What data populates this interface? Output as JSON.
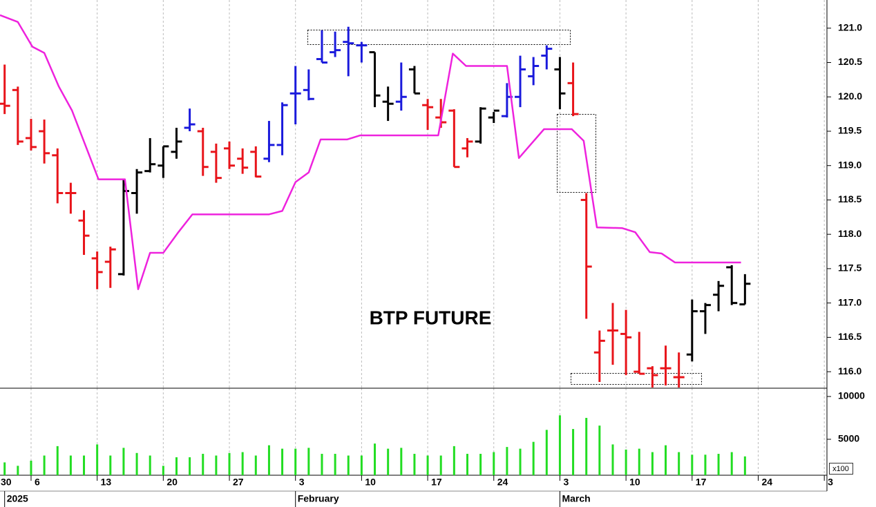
{
  "chart_data": [
    {
      "type": "ohlc",
      "title": "BTP FUTURE",
      "x": [
        -2,
        -1,
        0,
        1,
        2,
        3,
        4,
        5,
        6,
        7,
        8,
        9,
        10,
        11,
        12,
        13,
        14,
        15,
        16,
        17,
        18,
        19,
        20,
        21,
        22,
        23,
        24,
        25,
        26,
        27,
        28,
        29,
        30,
        31,
        32,
        33,
        34,
        35,
        36,
        37,
        38,
        39,
        40,
        41,
        42,
        43,
        44,
        45,
        46,
        47,
        48,
        49,
        50,
        51,
        52,
        53,
        54
      ],
      "open": [
        119.9,
        120.1,
        119.4,
        119.5,
        119.15,
        118.6,
        118.2,
        117.65,
        117.6,
        117.42,
        118.6,
        118.92,
        119.0,
        119.2,
        119.55,
        119.5,
        119.2,
        119.25,
        119.1,
        119.2,
        119.1,
        119.3,
        120.05,
        120.1,
        120.55,
        120.65,
        120.8,
        120.75,
        120.65,
        119.93,
        119.93,
        120.4,
        119.88,
        119.7,
        119.8,
        119.25,
        119.35,
        119.7,
        119.72,
        120.0,
        120.3,
        120.6,
        120.4,
        120.2,
        118.5,
        116.28,
        116.6,
        116.55,
        116.0,
        116.05,
        116.05,
        115.92,
        116.25,
        116.88,
        117.12,
        117.52,
        116.98
      ],
      "high": [
        120.47,
        120.15,
        119.68,
        119.67,
        119.25,
        118.75,
        118.35,
        117.75,
        117.82,
        118.8,
        118.95,
        119.4,
        119.28,
        119.55,
        119.83,
        119.55,
        119.32,
        119.35,
        119.25,
        119.28,
        119.65,
        119.92,
        120.45,
        120.4,
        120.97,
        120.95,
        121.02,
        120.8,
        120.65,
        120.15,
        120.5,
        120.45,
        119.97,
        119.97,
        119.82,
        119.4,
        119.85,
        119.78,
        120.2,
        120.6,
        120.58,
        120.75,
        120.58,
        120.5,
        118.6,
        116.6,
        117.0,
        116.9,
        116.58,
        116.08,
        116.38,
        116.28,
        117.05,
        117.0,
        117.32,
        117.55,
        117.42
      ],
      "low": [
        119.75,
        119.3,
        119.22,
        119.03,
        118.45,
        118.3,
        117.7,
        117.2,
        117.22,
        117.4,
        118.3,
        118.9,
        118.82,
        119.1,
        119.5,
        118.85,
        118.75,
        118.95,
        118.88,
        118.83,
        119.05,
        119.15,
        119.6,
        119.95,
        120.5,
        120.58,
        120.3,
        120.5,
        119.85,
        119.65,
        119.8,
        120.05,
        119.52,
        119.55,
        118.98,
        119.12,
        119.32,
        119.62,
        119.7,
        119.85,
        120.17,
        120.4,
        119.82,
        119.72,
        116.77,
        115.85,
        116.1,
        115.95,
        115.97,
        115.77,
        115.8,
        115.77,
        116.15,
        116.55,
        116.88,
        116.97,
        116.98
      ],
      "close": [
        119.87,
        119.35,
        119.27,
        119.18,
        118.6,
        118.6,
        117.98,
        117.45,
        117.78,
        118.63,
        118.9,
        119.02,
        119.28,
        119.35,
        119.6,
        118.98,
        118.82,
        119.0,
        118.97,
        118.84,
        119.3,
        119.88,
        120.05,
        119.97,
        120.5,
        120.68,
        120.78,
        120.75,
        120.02,
        119.9,
        120.0,
        120.05,
        119.85,
        119.63,
        118.98,
        119.35,
        119.83,
        119.8,
        120.0,
        120.4,
        120.45,
        120.7,
        120.05,
        119.75,
        117.53,
        116.45,
        116.6,
        116.5,
        115.97,
        115.95,
        116.05,
        115.92,
        116.88,
        116.97,
        117.25,
        117.0,
        117.28
      ],
      "bar_colors": [
        "#e8141a",
        "#e8141a",
        "#e8141a",
        "#e8141a",
        "#e8141a",
        "#e8141a",
        "#e8141a",
        "#e8141a",
        "#e8141a",
        "#000000",
        "#000000",
        "#000000",
        "#000000",
        "#000000",
        "#1a1adc",
        "#e8141a",
        "#e8141a",
        "#e8141a",
        "#e8141a",
        "#e8141a",
        "#1a1adc",
        "#1a1adc",
        "#1a1adc",
        "#1a1adc",
        "#1a1adc",
        "#1a1adc",
        "#1a1adc",
        "#1a1adc",
        "#000000",
        "#000000",
        "#1a1adc",
        "#000000",
        "#e8141a",
        "#e8141a",
        "#e8141a",
        "#e8141a",
        "#000000",
        "#000000",
        "#1a1adc",
        "#1a1adc",
        "#1a1adc",
        "#1a1adc",
        "#000000",
        "#e8141a",
        "#e8141a",
        "#e8141a",
        "#e8141a",
        "#e8141a",
        "#e8141a",
        "#e8141a",
        "#e8141a",
        "#e8141a",
        "#000000",
        "#000000",
        "#000000",
        "#000000",
        "#000000"
      ],
      "overlay": {
        "type": "line",
        "color": "#ee22dd",
        "x": [
          -2.35,
          -1.0,
          0.1,
          1.0,
          2.1,
          3.1,
          4.0,
          5.1,
          7.1,
          8.1,
          9.0,
          10.0,
          11.1,
          12.2,
          18.0,
          19.0,
          20.0,
          21.0,
          21.9,
          23.9,
          24.9,
          30.8,
          31.9,
          32.9,
          36.0,
          36.9,
          38.8,
          40.9,
          41.8,
          42.8,
          44.7,
          45.7,
          46.8,
          47.7,
          48.7,
          53.7
        ],
        "values": [
          121.19,
          121.09,
          120.73,
          120.64,
          120.15,
          119.8,
          119.35,
          118.8,
          118.8,
          117.2,
          117.73,
          117.73,
          118.02,
          118.29,
          118.29,
          118.34,
          118.76,
          118.9,
          119.38,
          119.38,
          119.44,
          119.44,
          120.63,
          120.45,
          120.45,
          119.11,
          119.53,
          119.53,
          119.36,
          118.1,
          118.09,
          118.03,
          117.74,
          117.72,
          117.59,
          117.59
        ]
      },
      "xlim": [
        -2.35,
        60.2
      ],
      "ylim": [
        115.76,
        121.41
      ],
      "yticks": [
        {
          "value": 116.0,
          "label": "116.0"
        },
        116.5,
        {
          "value": 117.0,
          "label": "117.0"
        },
        117.5,
        {
          "value": 118.0,
          "label": "118.0"
        },
        118.5,
        {
          "value": 119.0,
          "label": "119.0"
        },
        119.5,
        {
          "value": 120.0,
          "label": "120.0"
        },
        120.5,
        {
          "value": 121.0,
          "label": "121.0"
        }
      ],
      "grid": true
    },
    {
      "type": "bar",
      "color": "#22dd22",
      "unit_label": "x100",
      "x": [
        -2,
        -1,
        0,
        1,
        2,
        3,
        4,
        5,
        6,
        7,
        8,
        9,
        10,
        11,
        12,
        13,
        14,
        15,
        16,
        17,
        18,
        19,
        20,
        21,
        22,
        23,
        24,
        25,
        26,
        27,
        28,
        29,
        30,
        31,
        32,
        33,
        34,
        35,
        36,
        37,
        38,
        39,
        40,
        41,
        42,
        43,
        44,
        45,
        46,
        47,
        48,
        49,
        50,
        51,
        52,
        53,
        54
      ],
      "values": [
        2300,
        1900,
        2500,
        3100,
        4200,
        3100,
        3100,
        4400,
        3100,
        4000,
        3400,
        3100,
        1900,
        2900,
        2900,
        3300,
        3100,
        3400,
        3500,
        3100,
        4300,
        3900,
        3900,
        4000,
        3300,
        3300,
        3100,
        3100,
        4500,
        3900,
        4000,
        3300,
        3100,
        3100,
        4200,
        3300,
        3300,
        3500,
        4100,
        3900,
        4700,
        6100,
        7800,
        6200,
        7500,
        6600,
        4400,
        3800,
        3900,
        3500,
        4300,
        3500,
        3200,
        3200,
        3300,
        3500,
        3000
      ],
      "xlim": [
        -2.35,
        60.2
      ],
      "ylim": [
        800,
        10970
      ],
      "yticks": [
        5000,
        10000
      ],
      "xticks": [
        {
          "value": -4,
          "label": "30"
        },
        {
          "value": 0,
          "label": "6"
        },
        {
          "value": 5,
          "label": "13"
        },
        {
          "value": 10,
          "label": "20"
        },
        {
          "value": 15,
          "label": "27"
        },
        {
          "value": 20,
          "label": "3"
        },
        {
          "value": 25,
          "label": "10"
        },
        {
          "value": 30,
          "label": "17"
        },
        {
          "value": 35,
          "label": "24"
        },
        {
          "value": 40,
          "label": "3"
        },
        {
          "value": 45,
          "label": "10"
        },
        {
          "value": 50,
          "label": "17"
        },
        {
          "value": 55,
          "label": "24"
        },
        {
          "value": 60,
          "label": "3"
        }
      ],
      "month_labels": [
        {
          "value": -2,
          "label": "2025"
        },
        {
          "value": 20,
          "label": "February"
        },
        {
          "value": 40,
          "label": "March"
        }
      ],
      "grid": true
    }
  ]
}
